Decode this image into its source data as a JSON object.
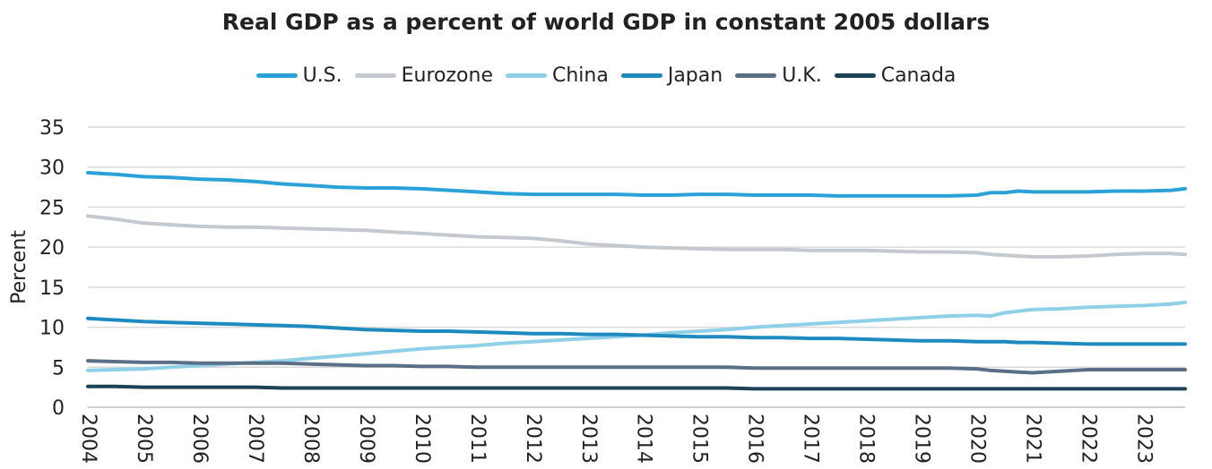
{
  "chart_data": {
    "type": "line",
    "title": "Real GDP as a percent of world GDP in constant 2005 dollars",
    "xlabel": "",
    "ylabel": "Percent",
    "ylim": [
      0,
      35
    ],
    "yticks": [
      0,
      5,
      10,
      15,
      20,
      25,
      30,
      35
    ],
    "xlim": [
      2004,
      2023.75
    ],
    "xticks": [
      2004,
      2005,
      2006,
      2007,
      2008,
      2009,
      2010,
      2011,
      2012,
      2013,
      2014,
      2015,
      2016,
      2017,
      2018,
      2019,
      2020,
      2021,
      2022,
      2023
    ],
    "grid": true,
    "legend_position": "top",
    "series": [
      {
        "name": "U.S.",
        "color": "#2aa2d8",
        "x": [
          2004,
          2004.5,
          2005,
          2005.5,
          2006,
          2006.5,
          2007,
          2007.5,
          2008,
          2008.5,
          2009,
          2009.5,
          2010,
          2010.5,
          2011,
          2011.5,
          2012,
          2012.5,
          2013,
          2013.5,
          2014,
          2014.5,
          2015,
          2015.5,
          2016,
          2016.5,
          2017,
          2017.5,
          2018,
          2018.5,
          2019,
          2019.5,
          2020,
          2020.25,
          2020.5,
          2020.75,
          2021,
          2021.5,
          2022,
          2022.5,
          2023,
          2023.5,
          2023.75
        ],
        "values": [
          29.3,
          29.1,
          28.8,
          28.7,
          28.5,
          28.4,
          28.2,
          27.9,
          27.7,
          27.5,
          27.4,
          27.4,
          27.3,
          27.1,
          26.9,
          26.7,
          26.6,
          26.6,
          26.6,
          26.6,
          26.5,
          26.5,
          26.6,
          26.6,
          26.5,
          26.5,
          26.5,
          26.4,
          26.4,
          26.4,
          26.4,
          26.4,
          26.5,
          26.8,
          26.8,
          27.0,
          26.9,
          26.9,
          26.9,
          27.0,
          27.0,
          27.1,
          27.3
        ]
      },
      {
        "name": "Eurozone",
        "color": "#c4c9cf",
        "x": [
          2004,
          2004.5,
          2005,
          2005.5,
          2006,
          2006.5,
          2007,
          2007.5,
          2008,
          2008.5,
          2009,
          2009.5,
          2010,
          2010.5,
          2011,
          2011.5,
          2012,
          2012.5,
          2013,
          2013.5,
          2014,
          2014.5,
          2015,
          2015.5,
          2016,
          2016.5,
          2017,
          2017.5,
          2018,
          2018.5,
          2019,
          2019.5,
          2020,
          2020.25,
          2020.5,
          2020.75,
          2021,
          2021.5,
          2022,
          2022.5,
          2023,
          2023.5,
          2023.75
        ],
        "values": [
          23.9,
          23.5,
          23.0,
          22.8,
          22.6,
          22.5,
          22.5,
          22.4,
          22.3,
          22.2,
          22.1,
          21.9,
          21.7,
          21.5,
          21.3,
          21.2,
          21.1,
          20.8,
          20.4,
          20.2,
          20.0,
          19.9,
          19.8,
          19.7,
          19.7,
          19.7,
          19.6,
          19.6,
          19.6,
          19.5,
          19.4,
          19.4,
          19.3,
          19.1,
          19.0,
          18.9,
          18.8,
          18.8,
          18.9,
          19.1,
          19.2,
          19.2,
          19.1
        ]
      },
      {
        "name": "China",
        "color": "#8fd0e8",
        "x": [
          2004,
          2004.5,
          2005,
          2005.5,
          2006,
          2006.5,
          2007,
          2007.5,
          2008,
          2008.5,
          2009,
          2009.5,
          2010,
          2010.5,
          2011,
          2011.5,
          2012,
          2012.5,
          2013,
          2013.5,
          2014,
          2014.5,
          2015,
          2015.5,
          2016,
          2016.5,
          2017,
          2017.5,
          2018,
          2018.5,
          2019,
          2019.5,
          2020,
          2020.25,
          2020.5,
          2020.75,
          2021,
          2021.5,
          2022,
          2022.5,
          2023,
          2023.5,
          2023.75
        ],
        "values": [
          4.6,
          4.7,
          4.8,
          5.0,
          5.2,
          5.4,
          5.6,
          5.8,
          6.1,
          6.4,
          6.7,
          7.0,
          7.3,
          7.5,
          7.7,
          8.0,
          8.2,
          8.4,
          8.6,
          8.8,
          9.0,
          9.3,
          9.5,
          9.7,
          10.0,
          10.2,
          10.4,
          10.6,
          10.8,
          11.0,
          11.2,
          11.4,
          11.5,
          11.4,
          11.8,
          12.0,
          12.2,
          12.3,
          12.5,
          12.6,
          12.7,
          12.9,
          13.1
        ]
      },
      {
        "name": "Japan",
        "color": "#1f8ac0",
        "x": [
          2004,
          2004.5,
          2005,
          2005.5,
          2006,
          2006.5,
          2007,
          2007.5,
          2008,
          2008.5,
          2009,
          2009.5,
          2010,
          2010.5,
          2011,
          2011.5,
          2012,
          2012.5,
          2013,
          2013.5,
          2014,
          2014.5,
          2015,
          2015.5,
          2016,
          2016.5,
          2017,
          2017.5,
          2018,
          2018.5,
          2019,
          2019.5,
          2020,
          2020.25,
          2020.5,
          2020.75,
          2021,
          2021.5,
          2022,
          2022.5,
          2023,
          2023.5,
          2023.75
        ],
        "values": [
          11.1,
          10.9,
          10.7,
          10.6,
          10.5,
          10.4,
          10.3,
          10.2,
          10.1,
          9.9,
          9.7,
          9.6,
          9.5,
          9.5,
          9.4,
          9.3,
          9.2,
          9.2,
          9.1,
          9.1,
          9.0,
          8.9,
          8.8,
          8.8,
          8.7,
          8.7,
          8.6,
          8.6,
          8.5,
          8.4,
          8.3,
          8.3,
          8.2,
          8.2,
          8.2,
          8.1,
          8.1,
          8.0,
          7.9,
          7.9,
          7.9,
          7.9,
          7.9
        ]
      },
      {
        "name": "U.K.",
        "color": "#5b7086",
        "x": [
          2004,
          2004.5,
          2005,
          2005.5,
          2006,
          2006.5,
          2007,
          2007.5,
          2008,
          2008.5,
          2009,
          2009.5,
          2010,
          2010.5,
          2011,
          2011.5,
          2012,
          2012.5,
          2013,
          2013.5,
          2014,
          2014.5,
          2015,
          2015.5,
          2016,
          2016.5,
          2017,
          2017.5,
          2018,
          2018.5,
          2019,
          2019.5,
          2020,
          2020.25,
          2020.5,
          2020.75,
          2021,
          2021.5,
          2022,
          2022.5,
          2023,
          2023.5,
          2023.75
        ],
        "values": [
          5.8,
          5.7,
          5.6,
          5.6,
          5.5,
          5.5,
          5.5,
          5.5,
          5.4,
          5.3,
          5.2,
          5.2,
          5.1,
          5.1,
          5.0,
          5.0,
          5.0,
          5.0,
          5.0,
          5.0,
          5.0,
          5.0,
          5.0,
          5.0,
          4.9,
          4.9,
          4.9,
          4.9,
          4.9,
          4.9,
          4.9,
          4.9,
          4.8,
          4.6,
          4.5,
          4.4,
          4.3,
          4.5,
          4.7,
          4.7,
          4.7,
          4.7,
          4.7
        ]
      },
      {
        "name": "Canada",
        "color": "#1c4257",
        "x": [
          2004,
          2004.5,
          2005,
          2005.5,
          2006,
          2006.5,
          2007,
          2007.5,
          2008,
          2008.5,
          2009,
          2009.5,
          2010,
          2010.5,
          2011,
          2011.5,
          2012,
          2012.5,
          2013,
          2013.5,
          2014,
          2014.5,
          2015,
          2015.5,
          2016,
          2016.5,
          2017,
          2017.5,
          2018,
          2018.5,
          2019,
          2019.5,
          2020,
          2020.25,
          2020.5,
          2020.75,
          2021,
          2021.5,
          2022,
          2022.5,
          2023,
          2023.5,
          2023.75
        ],
        "values": [
          2.6,
          2.6,
          2.5,
          2.5,
          2.5,
          2.5,
          2.5,
          2.4,
          2.4,
          2.4,
          2.4,
          2.4,
          2.4,
          2.4,
          2.4,
          2.4,
          2.4,
          2.4,
          2.4,
          2.4,
          2.4,
          2.4,
          2.4,
          2.4,
          2.3,
          2.3,
          2.3,
          2.3,
          2.3,
          2.3,
          2.3,
          2.3,
          2.3,
          2.3,
          2.3,
          2.3,
          2.3,
          2.3,
          2.3,
          2.3,
          2.3,
          2.3,
          2.3
        ]
      }
    ]
  }
}
